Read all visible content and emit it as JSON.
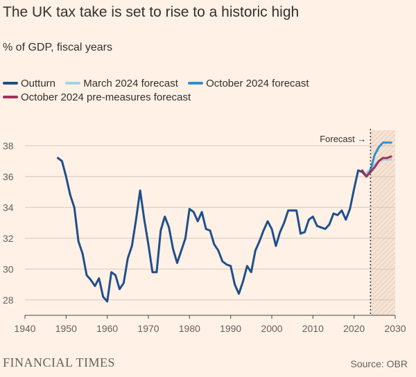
{
  "header": {
    "title": "The UK tax take is set to rise to a historic high",
    "subtitle": "% of GDP, fiscal years"
  },
  "legend": [
    {
      "label": "Outturn",
      "color": "#1f4e8c"
    },
    {
      "label": "March 2024 forecast",
      "color": "#9fd3ea"
    },
    {
      "label": "October 2024 forecast",
      "color": "#2f8fcf"
    },
    {
      "label": "October 2024 pre-measures forecast",
      "color": "#a3325a"
    }
  ],
  "footer": {
    "brand": "FINANCIAL TIMES",
    "source": "Source: OBR"
  },
  "chart_data": {
    "type": "line",
    "title": "The UK tax take is set to rise to a historic high",
    "subtitle": "% of GDP, fiscal years",
    "xlabel": "",
    "ylabel": "",
    "xlim": [
      1940,
      2030
    ],
    "ylim": [
      27,
      39
    ],
    "x_ticks": [
      1940,
      1950,
      1960,
      1970,
      1980,
      1990,
      2000,
      2010,
      2020,
      2030
    ],
    "y_ticks": [
      28,
      30,
      32,
      34,
      36,
      38
    ],
    "grid": "horizontal",
    "forecast_start": 2024,
    "annotation": "Forecast →",
    "series": [
      {
        "name": "Outturn",
        "color": "#1f4e8c",
        "x": [
          1948,
          1949,
          1950,
          1951,
          1952,
          1953,
          1954,
          1955,
          1956,
          1957,
          1958,
          1959,
          1960,
          1961,
          1962,
          1963,
          1964,
          1965,
          1966,
          1967,
          1968,
          1969,
          1970,
          1971,
          1972,
          1973,
          1974,
          1975,
          1976,
          1977,
          1978,
          1979,
          1980,
          1981,
          1982,
          1983,
          1984,
          1985,
          1986,
          1987,
          1988,
          1989,
          1990,
          1991,
          1992,
          1993,
          1994,
          1995,
          1996,
          1997,
          1998,
          1999,
          2000,
          2001,
          2002,
          2003,
          2004,
          2005,
          2006,
          2007,
          2008,
          2009,
          2010,
          2011,
          2012,
          2013,
          2014,
          2015,
          2016,
          2017,
          2018,
          2019,
          2020,
          2021,
          2022,
          2023
        ],
        "values": [
          37.2,
          37.0,
          36.0,
          34.8,
          34.0,
          31.8,
          31.0,
          29.6,
          29.3,
          28.9,
          29.4,
          28.2,
          27.9,
          29.8,
          29.6,
          28.7,
          29.1,
          30.7,
          31.5,
          33.2,
          35.1,
          33.2,
          31.6,
          29.8,
          29.8,
          32.5,
          33.4,
          32.7,
          31.3,
          30.4,
          31.2,
          32.0,
          33.9,
          33.7,
          33.1,
          33.7,
          32.6,
          32.5,
          31.6,
          31.2,
          30.5,
          30.3,
          30.2,
          29.0,
          28.4,
          29.2,
          30.2,
          29.8,
          31.2,
          31.8,
          32.5,
          33.1,
          32.6,
          31.5,
          32.4,
          33.0,
          33.8,
          33.8,
          33.8,
          32.3,
          32.4,
          33.2,
          33.4,
          32.8,
          32.7,
          32.6,
          32.9,
          33.6,
          33.5,
          33.8,
          33.2,
          33.9,
          35.2,
          36.4,
          36.3,
          36.0
        ]
      },
      {
        "name": "March 2024 forecast",
        "color": "#9fd3ea",
        "x": [
          2023,
          2024,
          2025,
          2026,
          2027,
          2028,
          2029
        ],
        "values": [
          36.2,
          36.5,
          36.8,
          37.0,
          37.1,
          37.1,
          37.1
        ]
      },
      {
        "name": "October 2024 forecast",
        "color": "#2f8fcf",
        "x": [
          2023,
          2024,
          2025,
          2026,
          2027,
          2028,
          2029
        ],
        "values": [
          36.0,
          36.4,
          37.4,
          37.9,
          38.2,
          38.2,
          38.2
        ]
      },
      {
        "name": "October 2024 pre-measures forecast",
        "color": "#a3325a",
        "x": [
          2022,
          2023,
          2024,
          2025,
          2026,
          2027,
          2028,
          2029
        ],
        "values": [
          36.4,
          36.0,
          36.3,
          36.6,
          37.0,
          37.2,
          37.2,
          37.3
        ]
      }
    ]
  }
}
